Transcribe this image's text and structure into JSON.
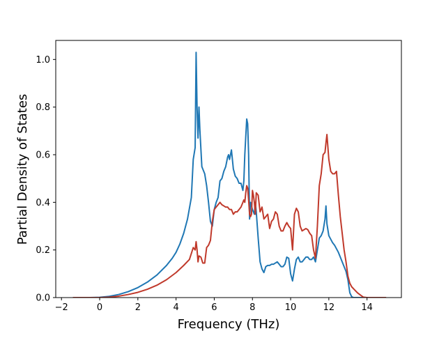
{
  "chart_data": {
    "type": "line",
    "title": "",
    "xlabel": "Frequency (THz)",
    "ylabel": "Partial Density of States",
    "xlim": [
      -2.3,
      15.8
    ],
    "ylim": [
      0,
      1.08
    ],
    "xticks": [
      -2,
      0,
      2,
      4,
      6,
      8,
      10,
      12,
      14
    ],
    "yticks": [
      0.0,
      0.2,
      0.4,
      0.6,
      0.8,
      1.0
    ],
    "xtick_labels": [
      "−2",
      "0",
      "2",
      "4",
      "6",
      "8",
      "10",
      "12",
      "14"
    ],
    "ytick_labels": [
      "0.0",
      "0.2",
      "0.4",
      "0.6",
      "0.8",
      "1.0"
    ],
    "grid": false,
    "legend": "none",
    "series": [
      {
        "color": "#1f77b4",
        "x": [
          -1.4,
          -0.5,
          0.0,
          0.5,
          1.0,
          1.5,
          2.0,
          2.5,
          3.0,
          3.5,
          3.8,
          4.0,
          4.2,
          4.4,
          4.6,
          4.8,
          4.9,
          5.0,
          5.05,
          5.1,
          5.15,
          5.2,
          5.25,
          5.35,
          5.5,
          5.6,
          5.7,
          5.8,
          5.9,
          6.0,
          6.1,
          6.2,
          6.3,
          6.4,
          6.5,
          6.6,
          6.7,
          6.75,
          6.8,
          6.9,
          7.0,
          7.1,
          7.2,
          7.3,
          7.4,
          7.5,
          7.55,
          7.6,
          7.7,
          7.75,
          7.8,
          7.85,
          7.9,
          8.0,
          8.1,
          8.15,
          8.2,
          8.3,
          8.4,
          8.5,
          8.6,
          8.7,
          8.8,
          8.9,
          9.0,
          9.1,
          9.2,
          9.3,
          9.4,
          9.5,
          9.6,
          9.7,
          9.8,
          9.9,
          10.0,
          10.1,
          10.2,
          10.3,
          10.4,
          10.5,
          10.6,
          10.7,
          10.8,
          10.9,
          11.0,
          11.1,
          11.2,
          11.3,
          11.4,
          11.5,
          11.6,
          11.7,
          11.8,
          11.85,
          11.9,
          12.0,
          12.1,
          12.2,
          12.3,
          12.4,
          12.5,
          12.6,
          12.7,
          12.8,
          12.9,
          13.0,
          13.1,
          13.2,
          13.3,
          13.5,
          14.0,
          15.0
        ],
        "y": [
          0.0,
          0.0,
          0.001,
          0.005,
          0.013,
          0.025,
          0.042,
          0.065,
          0.095,
          0.135,
          0.165,
          0.19,
          0.225,
          0.27,
          0.33,
          0.42,
          0.58,
          0.63,
          1.03,
          0.8,
          0.67,
          0.8,
          0.7,
          0.55,
          0.52,
          0.47,
          0.4,
          0.32,
          0.3,
          0.37,
          0.4,
          0.42,
          0.49,
          0.5,
          0.53,
          0.55,
          0.59,
          0.6,
          0.58,
          0.62,
          0.54,
          0.51,
          0.5,
          0.48,
          0.48,
          0.45,
          0.49,
          0.6,
          0.75,
          0.73,
          0.6,
          0.33,
          0.4,
          0.37,
          0.35,
          0.4,
          0.36,
          0.25,
          0.15,
          0.12,
          0.105,
          0.13,
          0.135,
          0.135,
          0.14,
          0.14,
          0.145,
          0.15,
          0.14,
          0.13,
          0.13,
          0.14,
          0.17,
          0.165,
          0.1,
          0.07,
          0.12,
          0.16,
          0.17,
          0.15,
          0.15,
          0.16,
          0.17,
          0.17,
          0.16,
          0.16,
          0.17,
          0.15,
          0.2,
          0.25,
          0.26,
          0.28,
          0.33,
          0.385,
          0.31,
          0.26,
          0.245,
          0.23,
          0.22,
          0.205,
          0.19,
          0.17,
          0.15,
          0.13,
          0.11,
          0.075,
          0.02,
          0.003,
          0.0,
          0.0,
          0.0,
          0.0
        ]
      },
      {
        "color": "#c0392b",
        "x": [
          -1.4,
          -0.5,
          0.0,
          0.5,
          1.0,
          1.5,
          2.0,
          2.5,
          3.0,
          3.5,
          4.0,
          4.4,
          4.7,
          4.9,
          5.0,
          5.05,
          5.1,
          5.15,
          5.2,
          5.3,
          5.4,
          5.5,
          5.6,
          5.7,
          5.8,
          5.9,
          6.0,
          6.1,
          6.2,
          6.3,
          6.4,
          6.5,
          6.6,
          6.7,
          6.8,
          6.9,
          7.0,
          7.1,
          7.2,
          7.3,
          7.4,
          7.5,
          7.55,
          7.6,
          7.65,
          7.7,
          7.75,
          7.8,
          7.85,
          7.9,
          7.95,
          8.0,
          8.05,
          8.1,
          8.15,
          8.2,
          8.3,
          8.4,
          8.5,
          8.6,
          8.7,
          8.8,
          8.9,
          9.0,
          9.1,
          9.2,
          9.3,
          9.4,
          9.5,
          9.6,
          9.7,
          9.8,
          9.9,
          10.0,
          10.1,
          10.2,
          10.3,
          10.4,
          10.5,
          10.6,
          10.7,
          10.8,
          10.9,
          11.0,
          11.1,
          11.2,
          11.3,
          11.4,
          11.5,
          11.6,
          11.7,
          11.8,
          11.85,
          11.9,
          12.0,
          12.1,
          12.2,
          12.3,
          12.4,
          12.5,
          12.6,
          12.7,
          12.8,
          12.9,
          13.0,
          13.1,
          13.2,
          13.5,
          13.8,
          14.0,
          15.0
        ],
        "y": [
          0.0,
          0.0,
          0.0,
          0.002,
          0.006,
          0.013,
          0.022,
          0.035,
          0.052,
          0.075,
          0.105,
          0.135,
          0.16,
          0.21,
          0.2,
          0.235,
          0.2,
          0.15,
          0.175,
          0.17,
          0.145,
          0.145,
          0.21,
          0.22,
          0.24,
          0.32,
          0.37,
          0.38,
          0.39,
          0.4,
          0.39,
          0.385,
          0.38,
          0.38,
          0.37,
          0.37,
          0.35,
          0.36,
          0.36,
          0.37,
          0.38,
          0.4,
          0.41,
          0.4,
          0.44,
          0.47,
          0.46,
          0.41,
          0.35,
          0.34,
          0.35,
          0.45,
          0.43,
          0.4,
          0.35,
          0.44,
          0.43,
          0.36,
          0.38,
          0.33,
          0.34,
          0.35,
          0.29,
          0.32,
          0.33,
          0.36,
          0.35,
          0.3,
          0.28,
          0.28,
          0.3,
          0.315,
          0.3,
          0.29,
          0.2,
          0.35,
          0.375,
          0.36,
          0.3,
          0.28,
          0.285,
          0.29,
          0.285,
          0.27,
          0.26,
          0.2,
          0.165,
          0.3,
          0.47,
          0.52,
          0.6,
          0.61,
          0.65,
          0.685,
          0.58,
          0.53,
          0.52,
          0.52,
          0.53,
          0.43,
          0.34,
          0.27,
          0.2,
          0.15,
          0.09,
          0.06,
          0.045,
          0.02,
          0.002,
          0.0,
          0.0
        ]
      }
    ]
  }
}
